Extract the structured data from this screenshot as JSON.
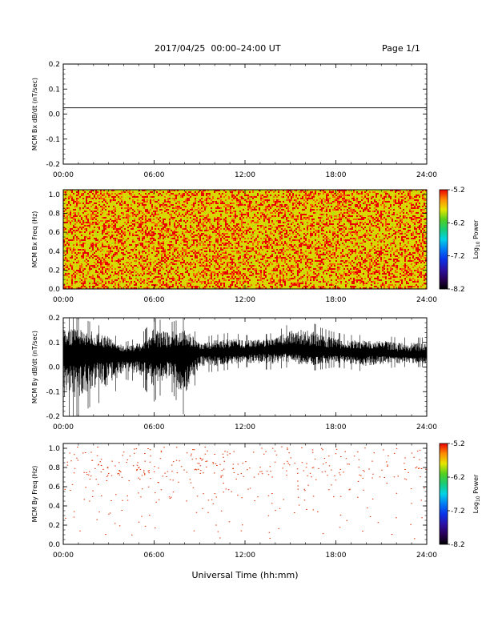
{
  "header": {
    "title": "2017/04/25  00:00–24:00 UT",
    "page": "Page 1/1"
  },
  "xaxis": {
    "label": "Universal Time (hh:mm)",
    "ticks": [
      "00:00",
      "06:00",
      "12:00",
      "18:00",
      "24:00"
    ],
    "range_hours": [
      0,
      24
    ]
  },
  "colors": {
    "axis": "#000000",
    "trace": "#000000",
    "spectrogram_base": "#d8d800",
    "event_dot": "#e03000"
  },
  "chart_data": [
    {
      "type": "line",
      "ylabel": "MCM Bx dB/dt (nT/sec)",
      "ylim": [
        -0.2,
        0.2
      ],
      "yticks": [
        "0.2",
        "0.1",
        "0.0",
        "-0.1",
        "-0.2"
      ],
      "series": [
        {
          "x": [
            0,
            24
          ],
          "y": [
            0.025,
            0.025
          ]
        }
      ]
    },
    {
      "type": "heatmap",
      "ylabel": "MCM Bx Freq (Hz)",
      "ylim": [
        0,
        1.05
      ],
      "yticks": [
        "1.0",
        "0.8",
        "0.6",
        "0.4",
        "0.2",
        "0.0"
      ],
      "colorbar": {
        "label": "Log10 Power",
        "ticks": [
          "-5.2",
          "-6.2",
          "-7.2",
          "-8.2"
        ],
        "range": [
          -8.2,
          -5.2
        ]
      },
      "value_distribution": {
        "min": -5.9,
        "max": -5.2,
        "typical": -5.6
      }
    },
    {
      "type": "line",
      "ylabel": "MCM By dB/dt (nT/sec)",
      "ylim": [
        -0.2,
        0.2
      ],
      "yticks": [
        "0.2",
        "0.1",
        "0.0",
        "-0.1",
        "-0.2"
      ],
      "series": [
        {
          "x": [
            0,
            1,
            2,
            3,
            4,
            5,
            6,
            7,
            8,
            9,
            10,
            11,
            12,
            13,
            14,
            15,
            16,
            17,
            18,
            19,
            20,
            21,
            22,
            23,
            24
          ],
          "y_mean": [
            0.06,
            0.06,
            0.06,
            0.06,
            0.05,
            0.05,
            0.05,
            0.05,
            0.05,
            0.06,
            0.06,
            0.06,
            0.06,
            0.07,
            0.07,
            0.07,
            0.06,
            0.06,
            0.06,
            0.06,
            0.06,
            0.06,
            0.05,
            0.05,
            0.05
          ],
          "y_max": [
            0.2,
            0.2,
            0.18,
            0.15,
            0.1,
            0.12,
            0.2,
            0.18,
            0.2,
            0.12,
            0.13,
            0.14,
            0.13,
            0.13,
            0.14,
            0.18,
            0.2,
            0.16,
            0.14,
            0.13,
            0.13,
            0.13,
            0.12,
            0.12,
            0.12
          ],
          "y_min": [
            -0.2,
            -0.2,
            -0.15,
            -0.14,
            -0.05,
            -0.06,
            -0.14,
            -0.08,
            -0.2,
            -0.02,
            -0.02,
            -0.01,
            0.0,
            -0.01,
            -0.01,
            0.0,
            -0.02,
            -0.01,
            0.0,
            -0.01,
            -0.02,
            -0.01,
            0.0,
            0.0,
            0.0
          ]
        }
      ]
    },
    {
      "type": "heatmap",
      "ylabel": "MCM By Freq (Hz)",
      "ylim": [
        0,
        1.05
      ],
      "yticks": [
        "1.0",
        "0.8",
        "0.6",
        "0.4",
        "0.2",
        "0.0"
      ],
      "colorbar": {
        "label": "Log10 Power",
        "ticks": [
          "-5.2",
          "-6.2",
          "-7.2",
          "-8.2"
        ],
        "range": [
          -8.2,
          -5.2
        ]
      },
      "sparse_points": "scattered high-power points, densest between 0.7 and 1.0 Hz"
    }
  ]
}
